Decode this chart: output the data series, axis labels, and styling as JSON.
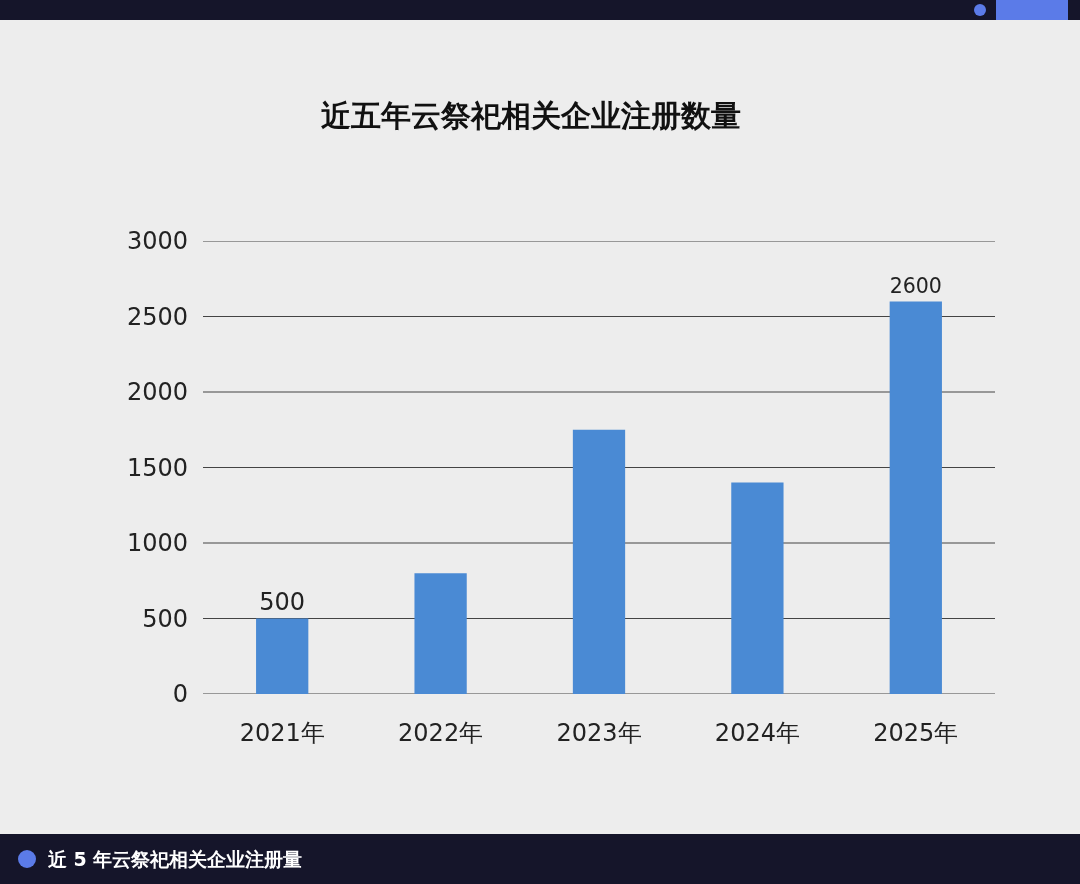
{
  "chart_data": {
    "type": "bar",
    "title": "近五年云祭祀相关企业注册数量",
    "categories": [
      "2021年",
      "2022年",
      "2023年",
      "2024年",
      "2025年"
    ],
    "values": [
      500,
      800,
      1750,
      1400,
      2600
    ],
    "value_labels": [
      "500",
      null,
      null,
      null,
      "2600"
    ],
    "color": "#4a8ad4",
    "ylim": [
      0,
      3000
    ],
    "yticks": [
      0,
      500,
      1000,
      1500,
      2000,
      2500,
      3000
    ],
    "grid": "y",
    "annotations": [
      "近 5 年云祭祀相关企业注册量"
    ]
  }
}
